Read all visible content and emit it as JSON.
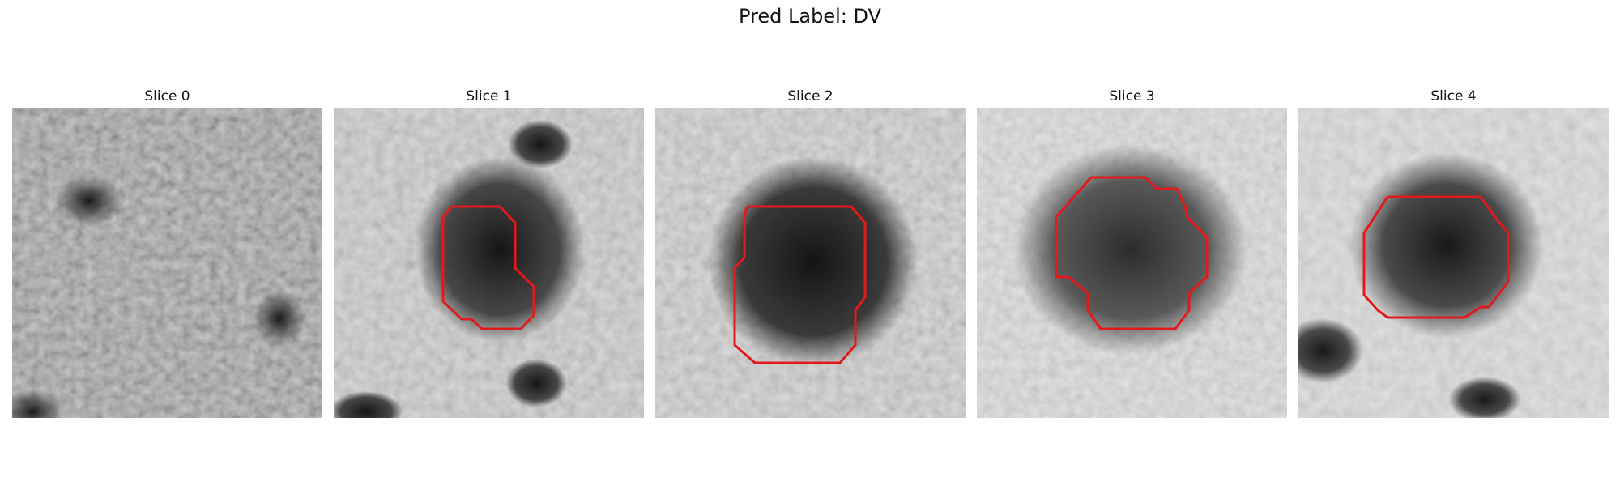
{
  "figure": {
    "title": "Pred Label: DV"
  },
  "panels": [
    {
      "label": "Slice 0",
      "has_contour": false
    },
    {
      "label": "Slice 1",
      "has_contour": true
    },
    {
      "label": "Slice 2",
      "has_contour": true
    },
    {
      "label": "Slice 3",
      "has_contour": true
    },
    {
      "label": "Slice 4",
      "has_contour": true
    }
  ],
  "colors": {
    "contour": "#e31a1c",
    "background": "#ffffff"
  }
}
